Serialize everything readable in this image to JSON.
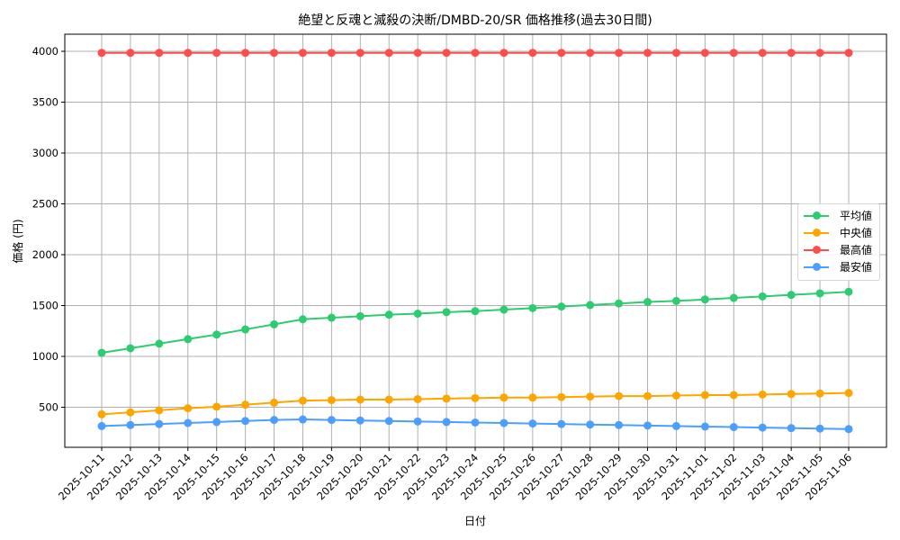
{
  "chart_data": {
    "type": "line",
    "title": "絶望と反魂と滅殺の決断/DMBD-20/SR 価格推移(過去30日間)",
    "xlabel": "日付",
    "ylabel": "価格 (円)",
    "ylim": [
      160,
      4170
    ],
    "yticks": [
      500,
      1000,
      1500,
      2000,
      2500,
      3000,
      3500,
      4000
    ],
    "grid": true,
    "legend_position": "center right",
    "x": [
      "2025-10-11",
      "2025-10-12",
      "2025-10-13",
      "2025-10-14",
      "2025-10-15",
      "2025-10-16",
      "2025-10-17",
      "2025-10-18",
      "2025-10-19",
      "2025-10-20",
      "2025-10-21",
      "2025-10-22",
      "2025-10-23",
      "2025-10-24",
      "2025-10-25",
      "2025-10-26",
      "2025-10-27",
      "2025-10-28",
      "2025-10-29",
      "2025-10-30",
      "2025-10-31",
      "2025-11-01",
      "2025-11-02",
      "2025-11-03",
      "2025-11-04",
      "2025-11-05",
      "2025-11-06"
    ],
    "series": [
      {
        "name": "平均値",
        "color": "#2ecc71",
        "values": [
          1035,
          1080,
          1125,
          1170,
          1215,
          1265,
          1315,
          1365,
          1380,
          1395,
          1410,
          1420,
          1435,
          1445,
          1460,
          1475,
          1490,
          1505,
          1520,
          1535,
          1545,
          1560,
          1575,
          1590,
          1605,
          1620,
          1635
        ]
      },
      {
        "name": "中央値",
        "color": "#ffa500",
        "values": [
          430,
          450,
          470,
          490,
          505,
          525,
          545,
          565,
          570,
          575,
          575,
          580,
          585,
          590,
          595,
          595,
          600,
          605,
          610,
          610,
          615,
          620,
          620,
          625,
          630,
          635,
          640
        ]
      },
      {
        "name": "最高値",
        "color": "#ff4d4d",
        "values": [
          3985,
          3985,
          3985,
          3985,
          3985,
          3985,
          3985,
          3985,
          3985,
          3985,
          3985,
          3985,
          3985,
          3985,
          3985,
          3985,
          3985,
          3985,
          3985,
          3985,
          3985,
          3985,
          3985,
          3985,
          3985,
          3985,
          3985
        ]
      },
      {
        "name": "最安値",
        "color": "#4d9fff",
        "values": [
          315,
          325,
          335,
          345,
          355,
          365,
          375,
          380,
          375,
          370,
          365,
          360,
          355,
          350,
          345,
          340,
          335,
          330,
          325,
          320,
          315,
          310,
          305,
          300,
          295,
          290,
          285
        ]
      }
    ]
  }
}
